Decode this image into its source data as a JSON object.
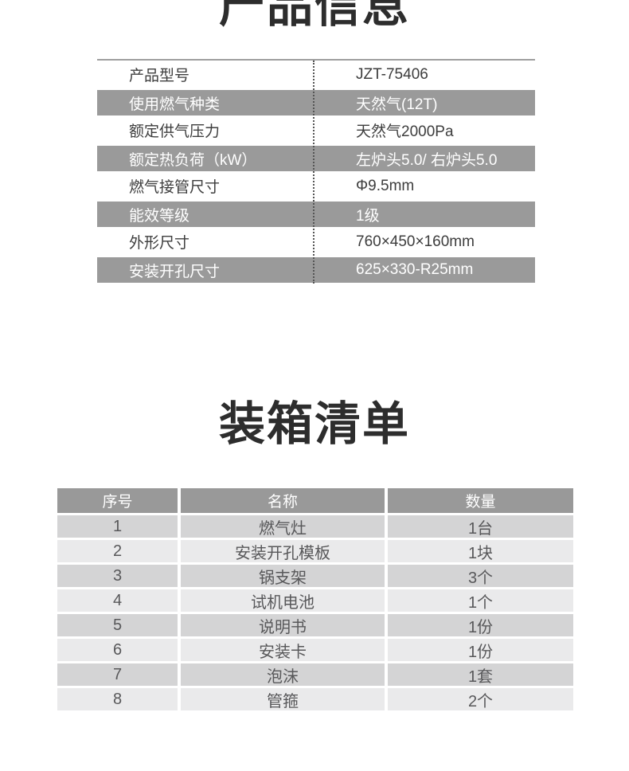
{
  "titles": {
    "product_info": "产品信息",
    "packing_list": "装箱清单"
  },
  "spec_table": {
    "rows": [
      {
        "label": "产品型号",
        "value": "JZT-75406"
      },
      {
        "label": "使用燃气种类",
        "value": "天然气(12T)"
      },
      {
        "label": "额定供气压力",
        "value": "天然气2000Pa"
      },
      {
        "label": "额定热负荷（kW）",
        "value": "左炉头5.0/ 右炉头5.0"
      },
      {
        "label": "燃气接管尺寸",
        "value": "Φ9.5mm"
      },
      {
        "label": "能效等级",
        "value": "1级"
      },
      {
        "label": "外形尺寸",
        "value": "760×450×160mm"
      },
      {
        "label": "安装开孔尺寸",
        "value": "625×330-R25mm"
      }
    ]
  },
  "packing_table": {
    "headers": [
      "序号",
      "名称",
      "数量"
    ],
    "rows": [
      [
        "1",
        "燃气灶",
        "1台"
      ],
      [
        "2",
        "安装开孔模板",
        "1块"
      ],
      [
        "3",
        "锅支架",
        "3个"
      ],
      [
        "4",
        "试机电池",
        "1个"
      ],
      [
        "5",
        "说明书",
        "1份"
      ],
      [
        "6",
        "安装卡",
        "1份"
      ],
      [
        "7",
        "泡沫",
        "1套"
      ],
      [
        "8",
        "管箍",
        "2个"
      ]
    ]
  },
  "colors": {
    "highlight_gray": "#9a9a9a",
    "packing_row_dark": "#d4d4d5",
    "packing_row_light": "#eaeaeb",
    "title_text": "#2d2d2d"
  }
}
